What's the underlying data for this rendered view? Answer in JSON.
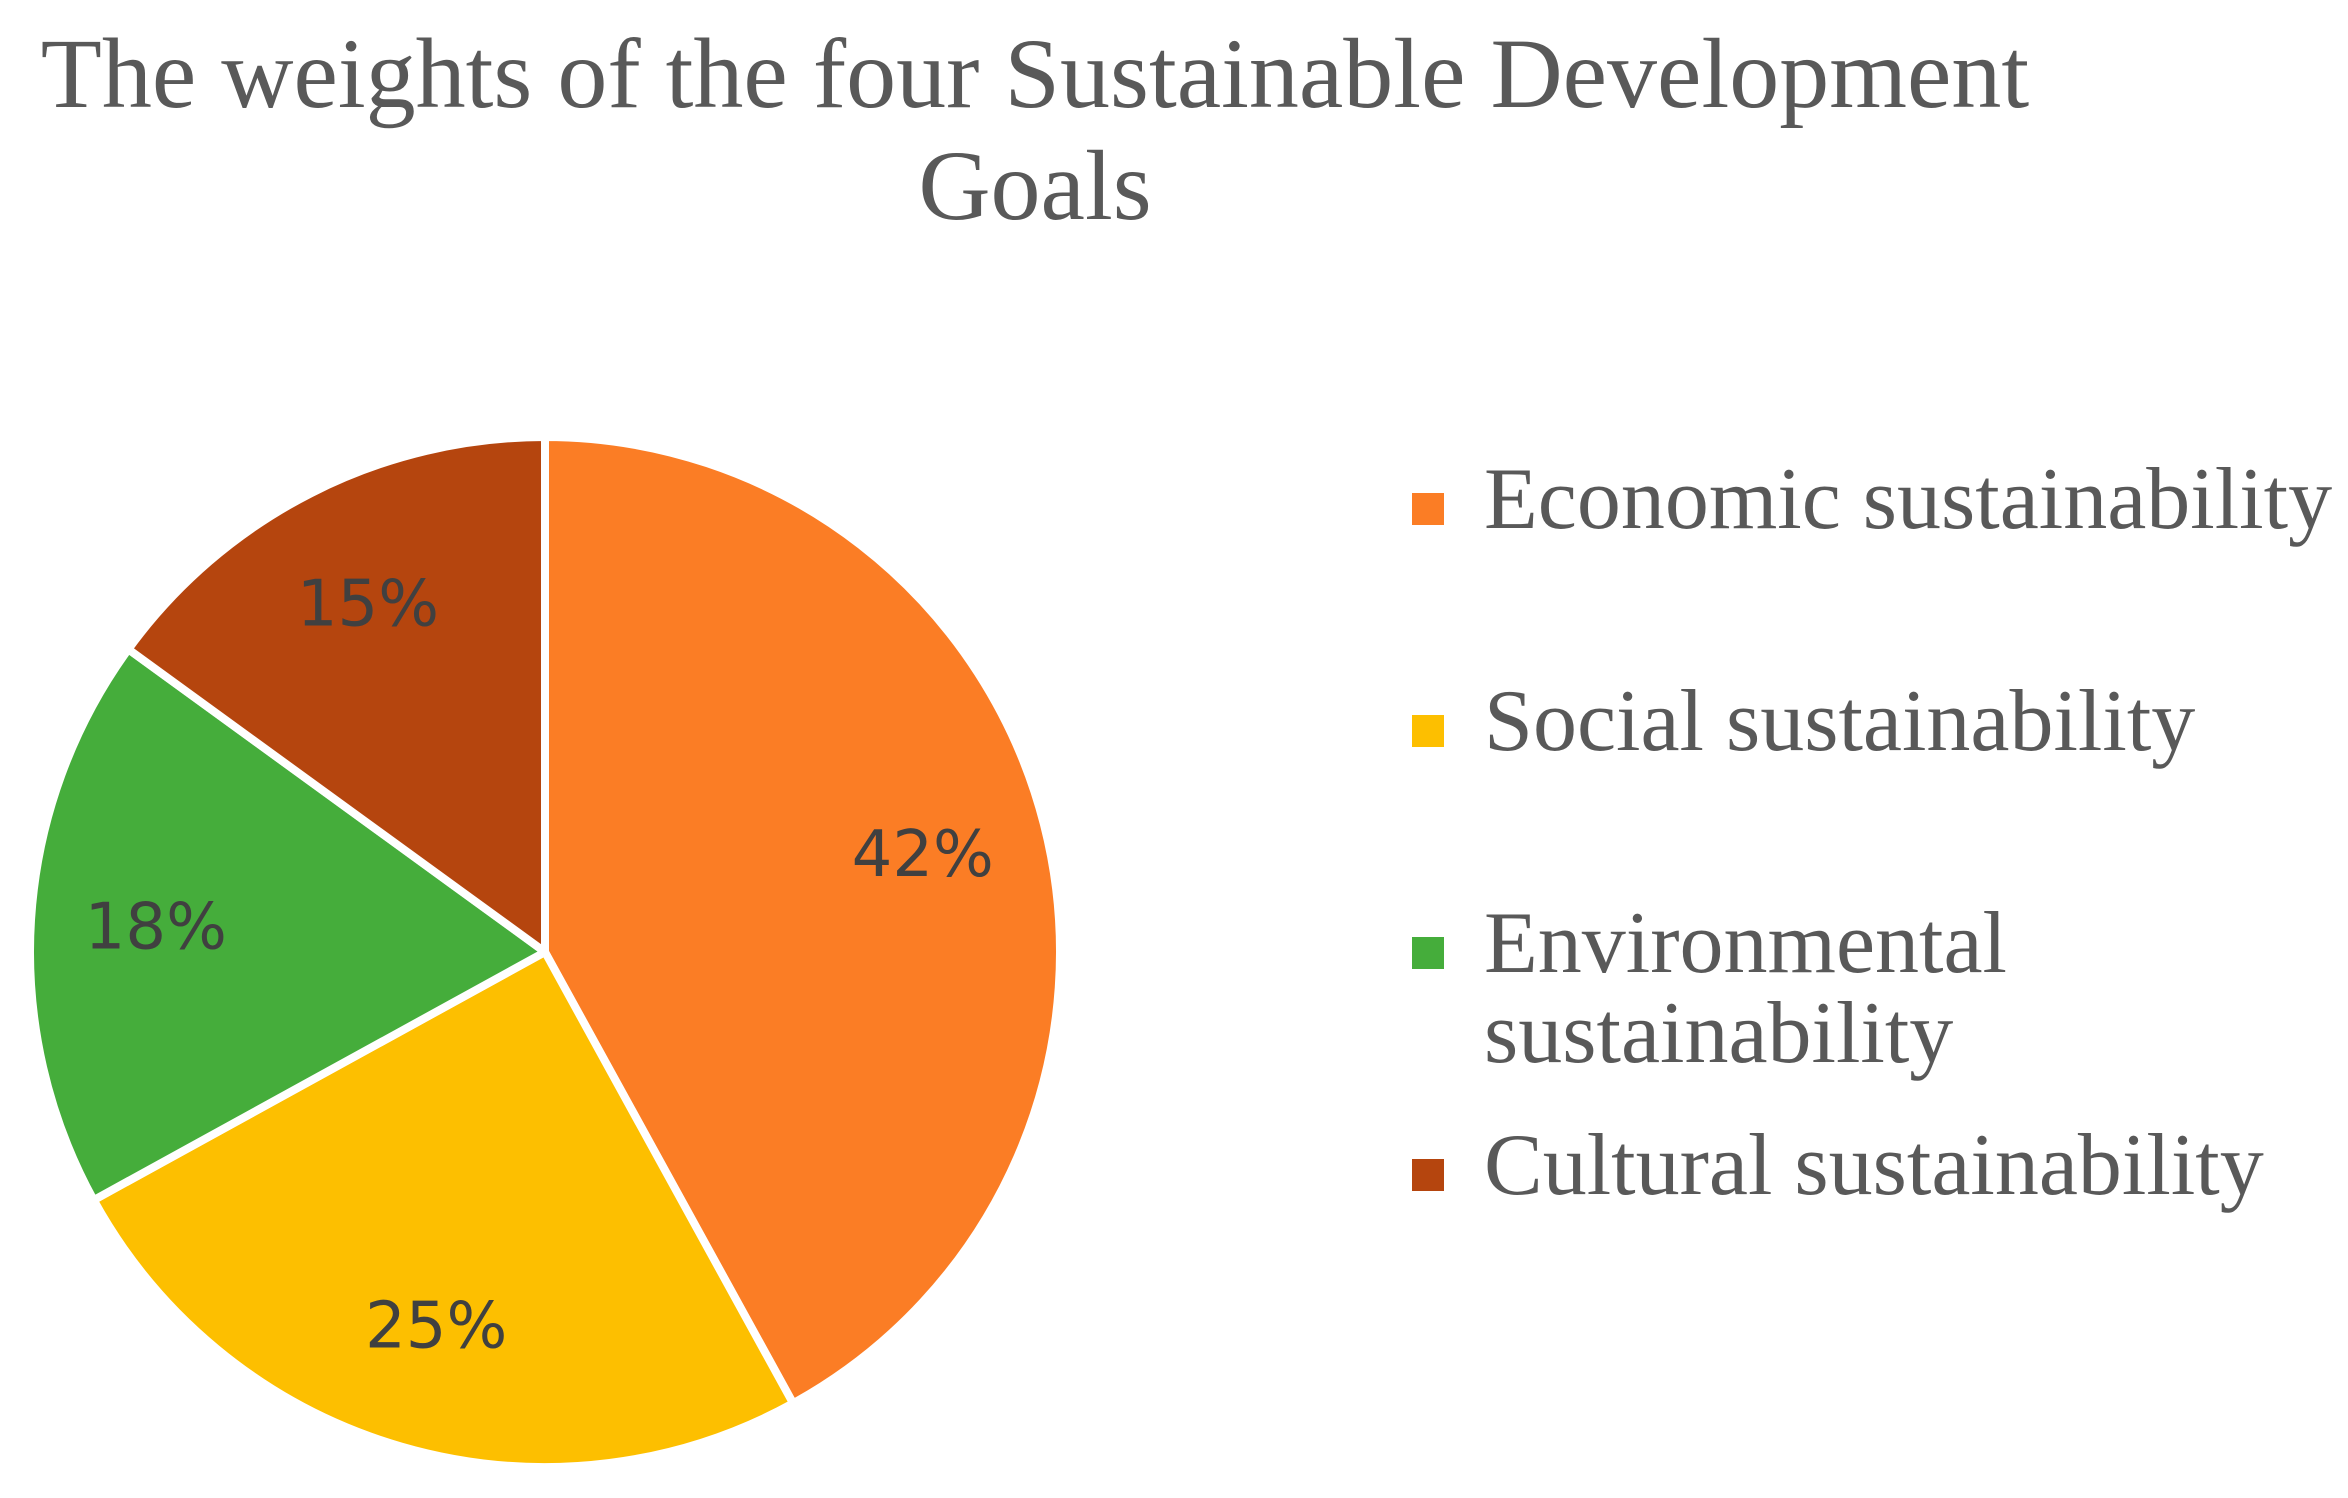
{
  "chart_data": {
    "type": "pie",
    "title_lines": [
      "The weights of the four Sustainable Development",
      "Goals"
    ],
    "categories": [
      "Economic sustainability",
      "Social sustainability",
      "Environmental sustainability",
      "Cultural sustainability"
    ],
    "values": [
      42,
      25,
      18,
      15
    ],
    "labels": [
      "42%",
      "25%",
      "18%",
      "15%"
    ],
    "colors": [
      "#FB7D25",
      "#FDBF00",
      "#45AD3B",
      "#B5450E"
    ],
    "start_angle_deg": 0,
    "direction": "clockwise",
    "legend_position": "right"
  }
}
